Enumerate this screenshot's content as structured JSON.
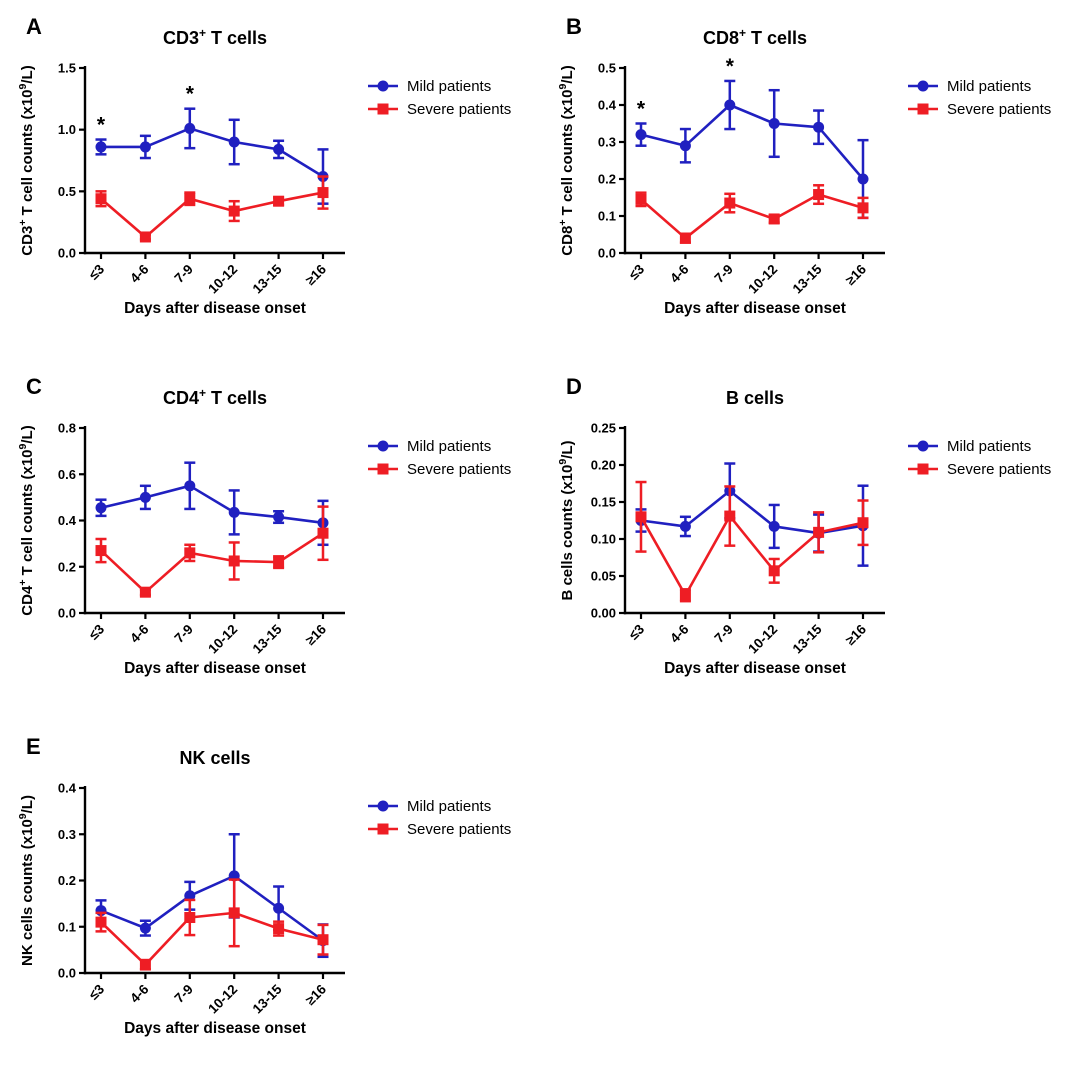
{
  "figure": {
    "background": "#ffffff",
    "legend": {
      "items": [
        {
          "label": "Mild patients",
          "marker": "circle",
          "color": "#2020c0"
        },
        {
          "label": "Severe patients",
          "marker": "square",
          "color": "#ee1d24"
        }
      ]
    },
    "colors": {
      "mild": "#2020c0",
      "severe": "#ee1d24",
      "axis": "#000000",
      "significance": "#000000"
    }
  },
  "chart_data": [
    {
      "panel": "A",
      "type": "line",
      "title": "CD3+ T cells",
      "title_segments": [
        [
          "CD3",
          0
        ],
        [
          "+",
          1
        ],
        [
          " T cells",
          0
        ]
      ],
      "ylabel": "CD3+ T cell counts (x10^9/L)",
      "ylabel_segments": [
        [
          "CD3",
          0
        ],
        [
          "+",
          1
        ],
        [
          " T cell counts (x10",
          0
        ],
        [
          "9",
          1
        ],
        [
          "/L)",
          0
        ]
      ],
      "xlabel": "Days after disease onset",
      "categories": [
        "≤3",
        "4-6",
        "7-9",
        "10-12",
        "13-15",
        "≥16"
      ],
      "ylim": [
        0,
        1.5
      ],
      "yticks": [
        "0.0",
        "0.5",
        "1.0",
        "1.5"
      ],
      "grid": false,
      "legend_position": "right-top",
      "significance_symbol": "*",
      "significance_indices": [
        0,
        2
      ],
      "series": [
        {
          "name": "Mild patients",
          "marker": "circle",
          "color": "#2020c0",
          "values": [
            0.86,
            0.86,
            1.01,
            0.9,
            0.84,
            0.62
          ],
          "errors": [
            0.06,
            0.09,
            0.16,
            0.18,
            0.07,
            0.22
          ]
        },
        {
          "name": "Severe patients",
          "marker": "square",
          "color": "#ee1d24",
          "values": [
            0.44,
            0.13,
            0.44,
            0.34,
            0.42,
            0.49
          ],
          "errors": [
            0.06,
            0.02,
            0.05,
            0.08,
            0.03,
            0.13
          ]
        }
      ]
    },
    {
      "panel": "B",
      "type": "line",
      "title": "CD8+ T cells",
      "title_segments": [
        [
          "CD8",
          0
        ],
        [
          "+",
          1
        ],
        [
          " T cells",
          0
        ]
      ],
      "ylabel": "CD8+ T cell counts (x10^9/L)",
      "ylabel_segments": [
        [
          "CD8",
          0
        ],
        [
          "+",
          1
        ],
        [
          " T cell counts (x10",
          0
        ],
        [
          "9",
          1
        ],
        [
          "/L)",
          0
        ]
      ],
      "xlabel": "Days after disease onset",
      "categories": [
        "≤3",
        "4-6",
        "7-9",
        "10-12",
        "13-15",
        "≥16"
      ],
      "ylim": [
        0,
        0.5
      ],
      "yticks": [
        "0.0",
        "0.1",
        "0.2",
        "0.3",
        "0.4",
        "0.5"
      ],
      "grid": false,
      "legend_position": "right-top",
      "significance_symbol": "*",
      "significance_indices": [
        0,
        2
      ],
      "series": [
        {
          "name": "Mild patients",
          "marker": "circle",
          "color": "#2020c0",
          "values": [
            0.32,
            0.29,
            0.4,
            0.35,
            0.34,
            0.2
          ],
          "errors": [
            0.03,
            0.045,
            0.065,
            0.09,
            0.045,
            0.105
          ]
        },
        {
          "name": "Severe patients",
          "marker": "square",
          "color": "#ee1d24",
          "values": [
            0.145,
            0.04,
            0.135,
            0.092,
            0.158,
            0.122
          ],
          "errors": [
            0.018,
            0.012,
            0.025,
            0.01,
            0.025,
            0.027
          ]
        }
      ]
    },
    {
      "panel": "C",
      "type": "line",
      "title": "CD4+ T cells",
      "title_segments": [
        [
          "CD4",
          0
        ],
        [
          "+",
          1
        ],
        [
          " T cells",
          0
        ]
      ],
      "ylabel": "CD4+ T cell counts (x10^9/L)",
      "ylabel_segments": [
        [
          "CD4",
          0
        ],
        [
          "+",
          1
        ],
        [
          " T cell counts (x10",
          0
        ],
        [
          "9",
          1
        ],
        [
          "/L)",
          0
        ]
      ],
      "xlabel": "Days after disease onset",
      "categories": [
        "≤3",
        "4-6",
        "7-9",
        "10-12",
        "13-15",
        "≥16"
      ],
      "ylim": [
        0,
        0.8
      ],
      "yticks": [
        "0.0",
        "0.2",
        "0.4",
        "0.6",
        "0.8"
      ],
      "grid": false,
      "legend_position": "right-top",
      "significance_symbol": "*",
      "significance_indices": [],
      "series": [
        {
          "name": "Mild patients",
          "marker": "circle",
          "color": "#2020c0",
          "values": [
            0.455,
            0.5,
            0.55,
            0.435,
            0.415,
            0.39
          ],
          "errors": [
            0.035,
            0.05,
            0.1,
            0.095,
            0.025,
            0.095
          ]
        },
        {
          "name": "Severe patients",
          "marker": "square",
          "color": "#ee1d24",
          "values": [
            0.27,
            0.09,
            0.26,
            0.225,
            0.22,
            0.345
          ],
          "errors": [
            0.05,
            0.012,
            0.035,
            0.08,
            0.025,
            0.115
          ]
        }
      ]
    },
    {
      "panel": "D",
      "type": "line",
      "title": "B cells",
      "title_segments": [
        [
          "B cells",
          0
        ]
      ],
      "ylabel": "B cells counts (x10^9/L)",
      "ylabel_segments": [
        [
          "B cells counts (x10",
          0
        ],
        [
          "9",
          1
        ],
        [
          "/L)",
          0
        ]
      ],
      "xlabel": "Days after disease onset",
      "categories": [
        "≤3",
        "4-6",
        "7-9",
        "10-12",
        "13-15",
        "≥16"
      ],
      "ylim": [
        0,
        0.25
      ],
      "yticks": [
        "0.00",
        "0.05",
        "0.10",
        "0.15",
        "0.20",
        "0.25"
      ],
      "grid": false,
      "legend_position": "right-top",
      "significance_symbol": "*",
      "significance_indices": [],
      "series": [
        {
          "name": "Mild patients",
          "marker": "circle",
          "color": "#2020c0",
          "values": [
            0.125,
            0.117,
            0.165,
            0.117,
            0.108,
            0.118
          ],
          "errors": [
            0.015,
            0.013,
            0.037,
            0.029,
            0.025,
            0.054
          ]
        },
        {
          "name": "Severe patients",
          "marker": "square",
          "color": "#ee1d24",
          "values": [
            0.13,
            0.024,
            0.131,
            0.057,
            0.109,
            0.122
          ],
          "errors": [
            0.047,
            0.008,
            0.04,
            0.016,
            0.027,
            0.03
          ]
        }
      ]
    },
    {
      "panel": "E",
      "type": "line",
      "title": "NK cells",
      "title_segments": [
        [
          "NK cells",
          0
        ]
      ],
      "ylabel": "NK cells counts (x10^9/L)",
      "ylabel_segments": [
        [
          "NK cells counts (x10",
          0
        ],
        [
          "9",
          1
        ],
        [
          "/L)",
          0
        ]
      ],
      "xlabel": "Days after disease onset",
      "categories": [
        "≤3",
        "4-6",
        "7-9",
        "10-12",
        "13-15",
        "≥16"
      ],
      "ylim": [
        0,
        0.4
      ],
      "yticks": [
        "0.0",
        "0.1",
        "0.2",
        "0.3",
        "0.4"
      ],
      "grid": false,
      "legend_position": "right-top",
      "significance_symbol": "*",
      "significance_indices": [],
      "series": [
        {
          "name": "Mild patients",
          "marker": "circle",
          "color": "#2020c0",
          "values": [
            0.135,
            0.097,
            0.167,
            0.21,
            0.14,
            0.07
          ],
          "errors": [
            0.022,
            0.016,
            0.03,
            0.09,
            0.047,
            0.035
          ]
        },
        {
          "name": "Severe patients",
          "marker": "square",
          "color": "#ee1d24",
          "values": [
            0.11,
            0.018,
            0.12,
            0.13,
            0.096,
            0.072
          ],
          "errors": [
            0.02,
            0.01,
            0.038,
            0.072,
            0.015,
            0.032
          ]
        }
      ]
    }
  ]
}
